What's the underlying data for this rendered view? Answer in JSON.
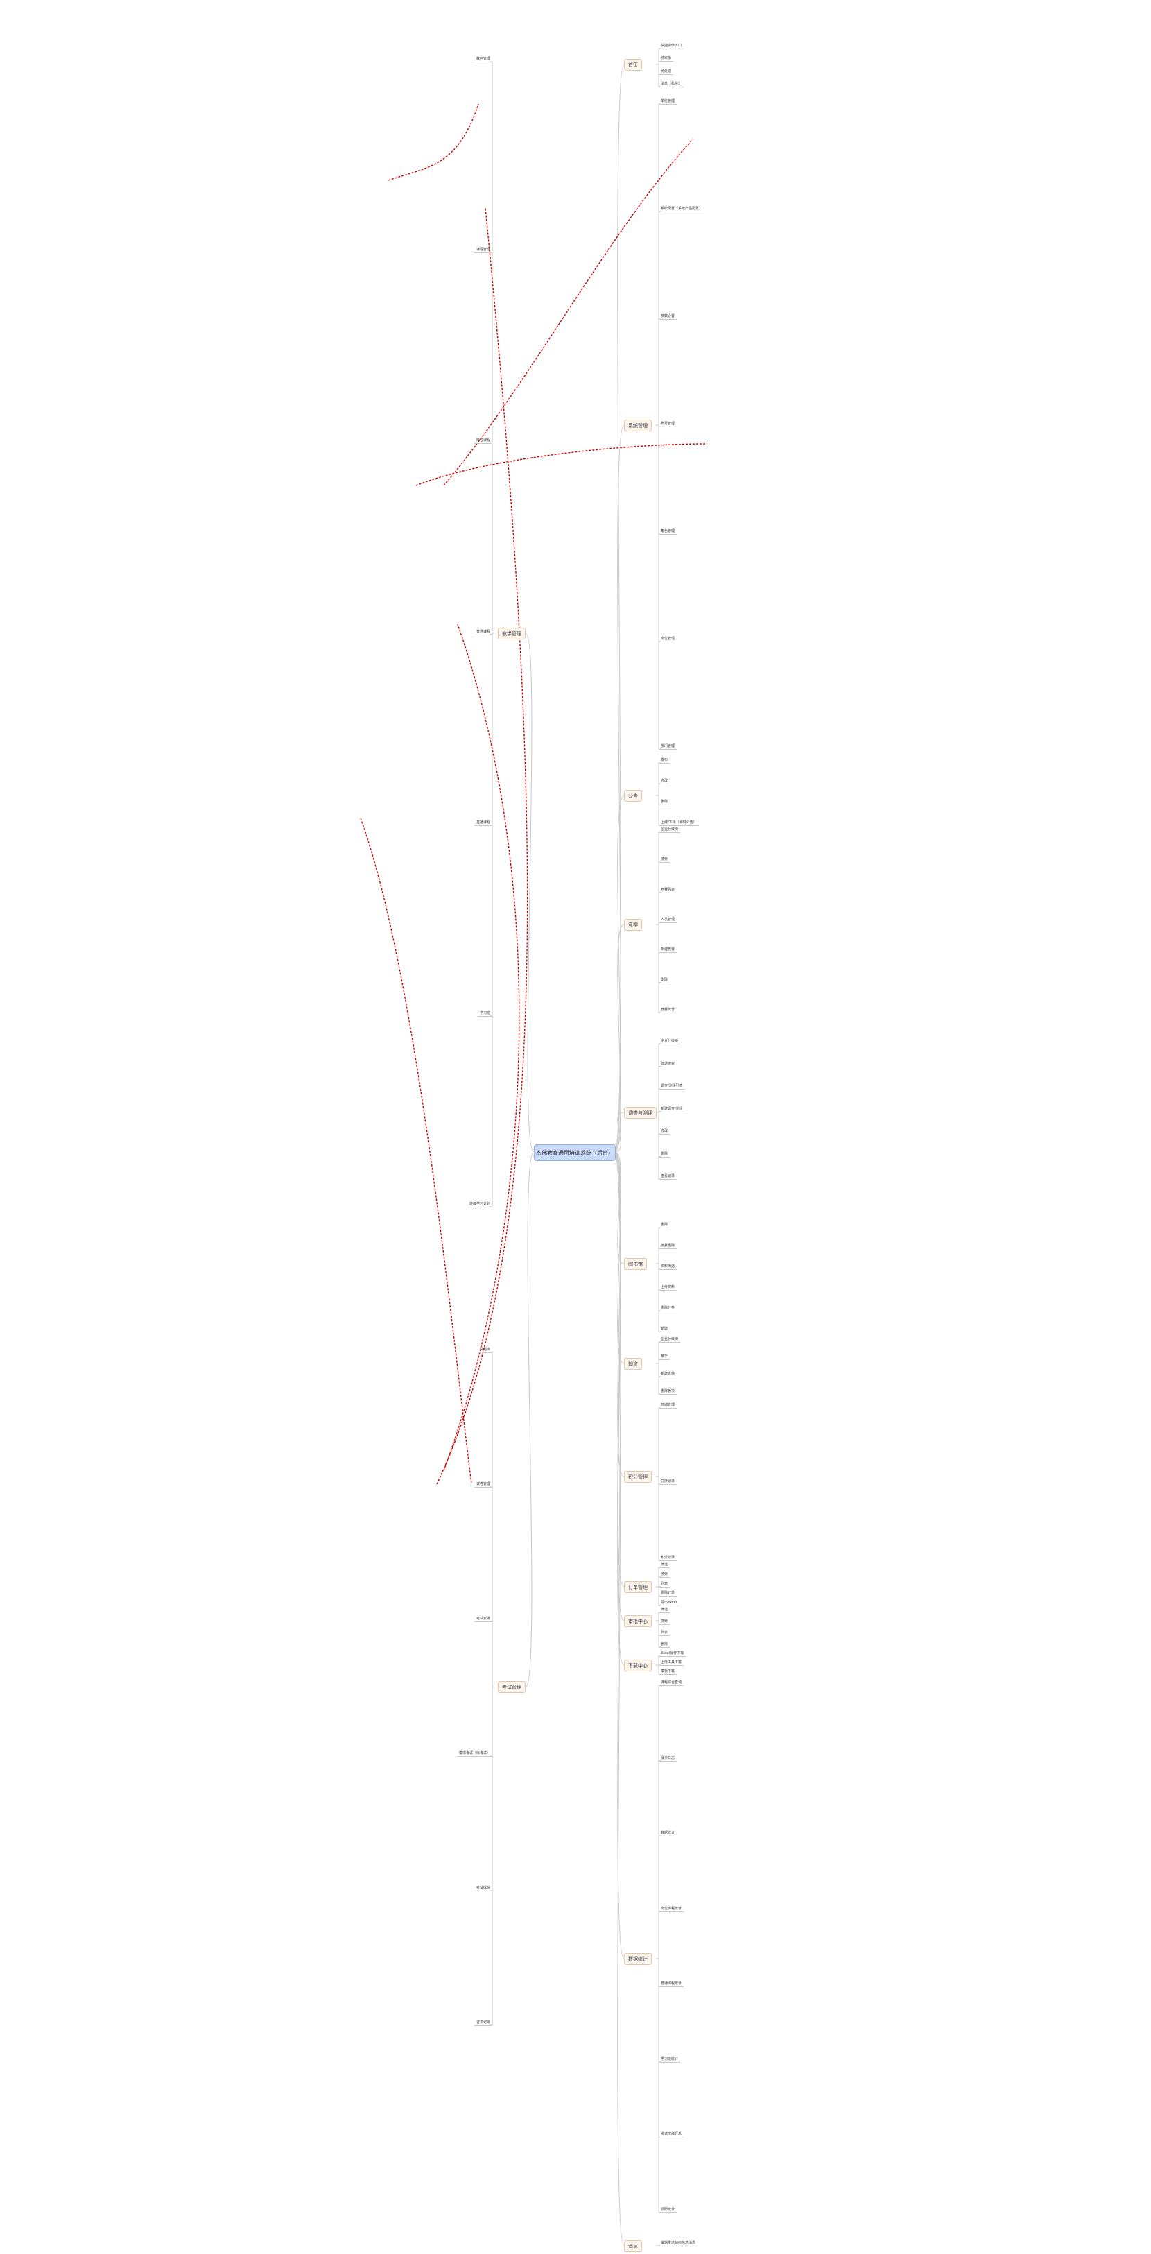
{
  "center": {
    "label": "杰佛教育通用培训系统（后台）"
  },
  "colors": {
    "center_fill": "#c9dbf7",
    "branch_fill": "#fbf5ee",
    "link": "#c8c8c8",
    "relation_arrow": "#cc0000"
  },
  "right_branches": [
    {
      "label": "首页",
      "children": [
        "快捷操作入口",
        "待审批",
        "待处理",
        "消息（私信）"
      ]
    },
    {
      "label": "系统管理",
      "children": [
        "单位管理",
        "系统配置（系统产品配置）",
        "参数设置",
        "账号管理",
        "角色管理",
        "岗位管理",
        "部门管理"
      ]
    },
    {
      "label": "公告",
      "children": [
        "发布",
        "修改",
        "删除",
        "上线/下线（即时公告）"
      ]
    },
    {
      "label": "竞赛",
      "children": [
        "企业分级树",
        "搜索",
        "竞赛列表",
        "人员管理",
        "新建竞赛",
        "删除",
        "竞赛统计"
      ]
    },
    {
      "label": "调查与测评",
      "children": [
        "企业分级树",
        "筛选搜索",
        "调查/测评列表",
        "新建调查/测评",
        "修改",
        "删除",
        "查看记录"
      ]
    },
    {
      "label": "图书馆",
      "children": [
        "删除",
        "批量删除",
        "资料筛选",
        "上传资料",
        "删除分类",
        "新建"
      ]
    },
    {
      "label": "知道",
      "children": [
        "企业分级树",
        "精华",
        "新建板块",
        "删除板块"
      ]
    },
    {
      "label": "积分管理",
      "children": [
        "商城管理",
        "兑换记录",
        "积分记录"
      ]
    },
    {
      "label": "订单管理",
      "children": [
        "筛选",
        "搜索",
        "列表",
        "删除订单",
        "导出excel"
      ]
    },
    {
      "label": "审批中心",
      "children": [
        "筛选",
        "搜索",
        "列表",
        "删除"
      ]
    },
    {
      "label": "下载中心",
      "children": [
        "Excel操作下载",
        "上传工具下载",
        "模板下载"
      ]
    },
    {
      "label": "数据统计",
      "children": [
        "课程综合查询",
        "操作日志",
        "数据统计",
        "岗位课程统计",
        "普通课程统计",
        "学习班统计",
        "考试成绩汇总",
        "调研统计"
      ]
    },
    {
      "label": "消息",
      "children": [
        "编辑发送站内信息消息"
      ]
    }
  ],
  "left_branches": [
    {
      "label": "教学管理",
      "children": [
        "教材管理",
        "课程管理",
        "岗位课程",
        "普通课程",
        "直播课程",
        "学习班",
        "班级学习计划"
      ]
    },
    {
      "label": "考试管理",
      "children": [
        "试题库",
        "试卷管理",
        "考试安排",
        "模拟考试（练考试）",
        "考试成绩",
        "证书记录"
      ]
    }
  ]
}
